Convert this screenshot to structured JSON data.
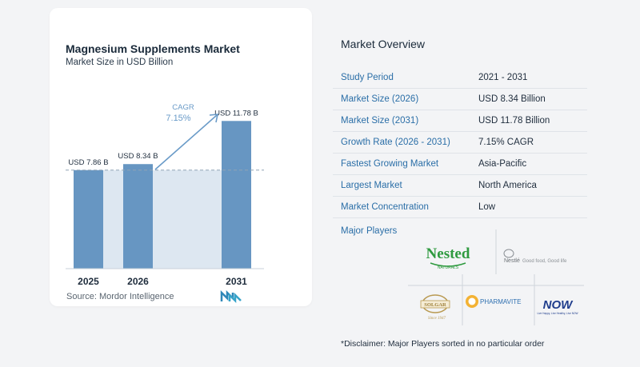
{
  "chart": {
    "title": "Magnesium Supplements Market",
    "subtitle": "Market Size in USD Billion",
    "source": "Source:  Mordor Intelligence",
    "cagr_label": "CAGR",
    "cagr_value": "7.15%"
  },
  "chart_data": {
    "type": "bar",
    "categories": [
      "2025",
      "2026",
      "2031"
    ],
    "values": [
      7.86,
      8.34,
      11.78
    ],
    "data_labels": [
      "USD 7.86 B",
      "USD 8.34 B",
      "USD 11.78 B"
    ],
    "title": "Magnesium Supplements Market",
    "subtitle": "Market Size in USD Billion",
    "xlabel": "",
    "ylabel": "",
    "ylim": [
      0,
      12.5
    ],
    "grid": false,
    "bar_color": "#6796c2",
    "reference_line_value": 7.86,
    "annotation": "CAGR 7.15%"
  },
  "overview": {
    "title": "Market Overview",
    "rows": [
      {
        "label": "Study Period",
        "value": "2021 - 2031"
      },
      {
        "label": "Market Size (2026)",
        "value": "USD 8.34 Billion"
      },
      {
        "label": "Market Size (2031)",
        "value": "USD 11.78 Billion"
      },
      {
        "label": "Growth Rate (2026 - 2031)",
        "value": "7.15% CAGR"
      },
      {
        "label": "Fastest Growing Market",
        "value": "Asia-Pacific"
      },
      {
        "label": "Largest Market",
        "value": "North America"
      },
      {
        "label": "Market Concentration",
        "value": "Low"
      }
    ]
  },
  "players": {
    "title": "Major Players",
    "logos": {
      "nested": {
        "name": "Nested",
        "sub": "NATURALS"
      },
      "nestle": {
        "name": "Nestlé",
        "tagline": "Good food, Good life"
      },
      "solgar": {
        "name": "SOLGAR",
        "since": "Since 1947"
      },
      "pharmavite": {
        "name": "PHARMAVITE"
      },
      "now": {
        "name": "NOW",
        "tagline": "Live Happy, Live Healthy, Live NOW"
      }
    }
  },
  "disclaimer": "*Disclaimer: Major Players sorted in no particular order",
  "colors": {
    "accent_blue": "#2a6ea7",
    "bar": "#6796c2",
    "bar_shade": "#dde7f1",
    "green_logo": "#2e9a3f"
  }
}
